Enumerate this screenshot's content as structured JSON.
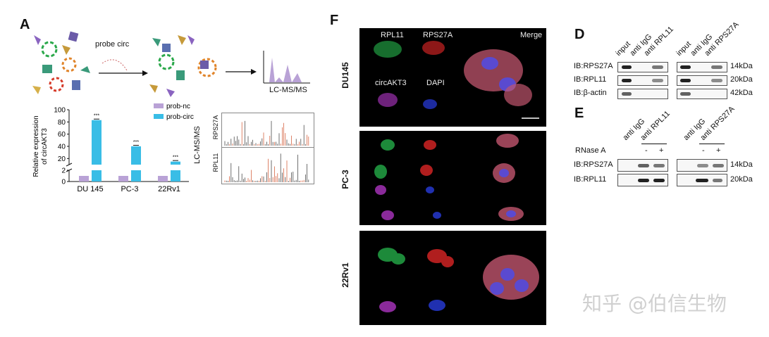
{
  "panel_a": {
    "letter": "A",
    "probe_label": "probe circ",
    "lcms_label": "LC-MS/MS",
    "lcms_vertical_label": "LC-MS/MS",
    "spectra_labels": [
      "RPS27A",
      "RPL11"
    ]
  },
  "chart_data": {
    "type": "bar",
    "ylabel": "Relative expression of circAKT3",
    "categories": [
      "DU 145",
      "PC-3",
      "22Rv1"
    ],
    "series": [
      {
        "name": "prob-nc",
        "color": "#b9a2d6",
        "values": [
          1,
          1,
          1
        ]
      },
      {
        "name": "prob-circ",
        "color": "#39bde6",
        "values": [
          83,
          40,
          15
        ]
      }
    ],
    "ylim": [
      0,
      100
    ],
    "yticks": [
      "100",
      "80",
      "60",
      "40",
      "20",
      "2",
      "0"
    ],
    "axis_break": [
      2,
      10
    ],
    "significance": [
      "***",
      "***",
      "***"
    ],
    "legend_position": "top-right"
  },
  "panel_f": {
    "letter": "F",
    "rows": [
      "DU145",
      "PC-3",
      "22Rv1"
    ],
    "channel_labels": [
      "RPL11",
      "RPS27A",
      "Merge",
      "circAKT3",
      "DAPI"
    ]
  },
  "panel_d": {
    "letter": "D",
    "lanes_left": [
      "input",
      "anti IgG",
      "anti RPL11"
    ],
    "lanes_right": [
      "input",
      "anti IgG",
      "anti RPS27A"
    ],
    "rows": [
      {
        "label": "IB:RPS27A",
        "size": "14kDa"
      },
      {
        "label": "IB:RPL11",
        "size": "20kDa"
      },
      {
        "label": "IB:β-actin",
        "size": "42kDa"
      }
    ]
  },
  "panel_e": {
    "letter": "E",
    "lanes_left": [
      "anti IgG",
      "anti RPL11"
    ],
    "lanes_right": [
      "anti IgG",
      "anti RPS27A"
    ],
    "rnase_label": "RNase A",
    "rnase_signs": [
      "-",
      "+",
      "-",
      "+"
    ],
    "rows": [
      {
        "label": "IB:RPS27A",
        "size": "14kDa"
      },
      {
        "label": "IB:RPL11",
        "size": "20kDa"
      }
    ]
  },
  "watermark": "知乎 @伯信生物"
}
